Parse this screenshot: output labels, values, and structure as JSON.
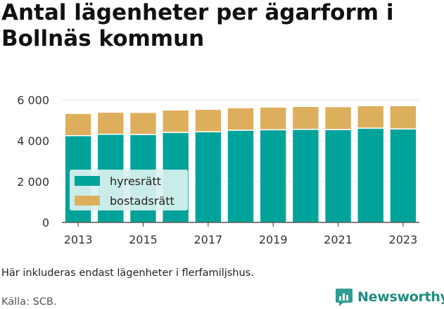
{
  "title": "Antal lägenheter per ägarform i Bollnäs kommun",
  "note": "Här inkluderas endast lägenheter i flerfamiljshus.",
  "source": "Källa: SCB.",
  "brand": "Newsworthy",
  "colors": {
    "hyresratt": "#00a39a",
    "bostadsratt": "#ddaf5c",
    "legend_bg": "#d9f1ef",
    "grid": "#e3e3e3"
  },
  "chart_data": {
    "type": "bar",
    "stacked": true,
    "categories": [
      "2013",
      "2014",
      "2015",
      "2016",
      "2017",
      "2018",
      "2019",
      "2020",
      "2021",
      "2022",
      "2023"
    ],
    "series": [
      {
        "name": "hyresrätt",
        "color": "#00a39a",
        "values": [
          4250,
          4320,
          4310,
          4410,
          4440,
          4520,
          4540,
          4560,
          4550,
          4620,
          4580
        ]
      },
      {
        "name": "bostadsrätt",
        "color": "#ddaf5c",
        "values": [
          1090,
          1080,
          1080,
          1100,
          1100,
          1100,
          1110,
          1120,
          1120,
          1100,
          1140
        ]
      }
    ],
    "xticks": [
      "2013",
      "2015",
      "2017",
      "2019",
      "2021",
      "2023"
    ],
    "yticks": [
      0,
      2000,
      4000,
      6000
    ],
    "ytick_labels": [
      "0",
      "2 000",
      "4 000",
      "6 000"
    ],
    "ylim": [
      0,
      6000
    ],
    "grid": true,
    "legend_position": "middle-left"
  }
}
